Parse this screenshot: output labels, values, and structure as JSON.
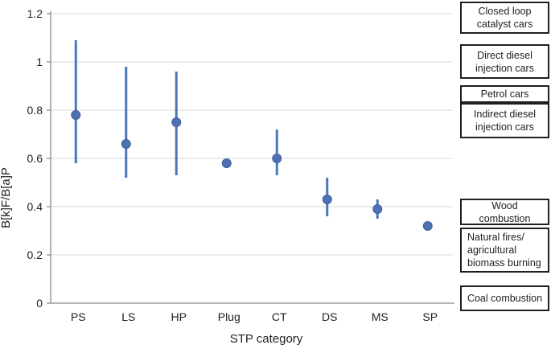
{
  "chart_data": {
    "type": "scatter",
    "title": "",
    "xlabel": "STP category",
    "ylabel": "B[k]F/B[a]P",
    "categories": [
      "PS",
      "LS",
      "HP",
      "Plug",
      "CT",
      "DS",
      "MS",
      "SP"
    ],
    "values": [
      0.78,
      0.66,
      0.75,
      0.58,
      0.6,
      0.43,
      0.39,
      0.32
    ],
    "error_low": [
      0.58,
      0.52,
      0.53,
      null,
      0.53,
      0.36,
      0.35,
      null
    ],
    "error_high": [
      1.09,
      0.98,
      0.96,
      null,
      0.72,
      0.52,
      0.43,
      null
    ],
    "ylim": [
      0,
      1.2
    ],
    "yticks": [
      0,
      0.2,
      0.4,
      0.6,
      0.8,
      1,
      1.2
    ],
    "ytick_labels": [
      "0",
      "0.2",
      "0.4",
      "0.6",
      "0.8",
      "1",
      "1.2"
    ],
    "grid": true,
    "legend_position": "none",
    "colors": {
      "marker": "#4d71b3",
      "marker_border": "#3f5f9e",
      "error_bar": "#4a77b9",
      "grid": "#d9d9d9",
      "axis": "#8a8a8a",
      "text": "#1f1f1f"
    }
  },
  "annotations": {
    "boxes": [
      {
        "label": "Closed loop\ncatalyst cars"
      },
      {
        "label": "Direct diesel\ninjection cars"
      },
      {
        "label": "Petrol cars"
      },
      {
        "label": "Indirect diesel\ninjection cars"
      },
      {
        "label": "Wood\ncombustion"
      },
      {
        "label": "Natural fires/\nagricultural\nbiomass burning"
      },
      {
        "label": "Coal combustion"
      }
    ]
  }
}
